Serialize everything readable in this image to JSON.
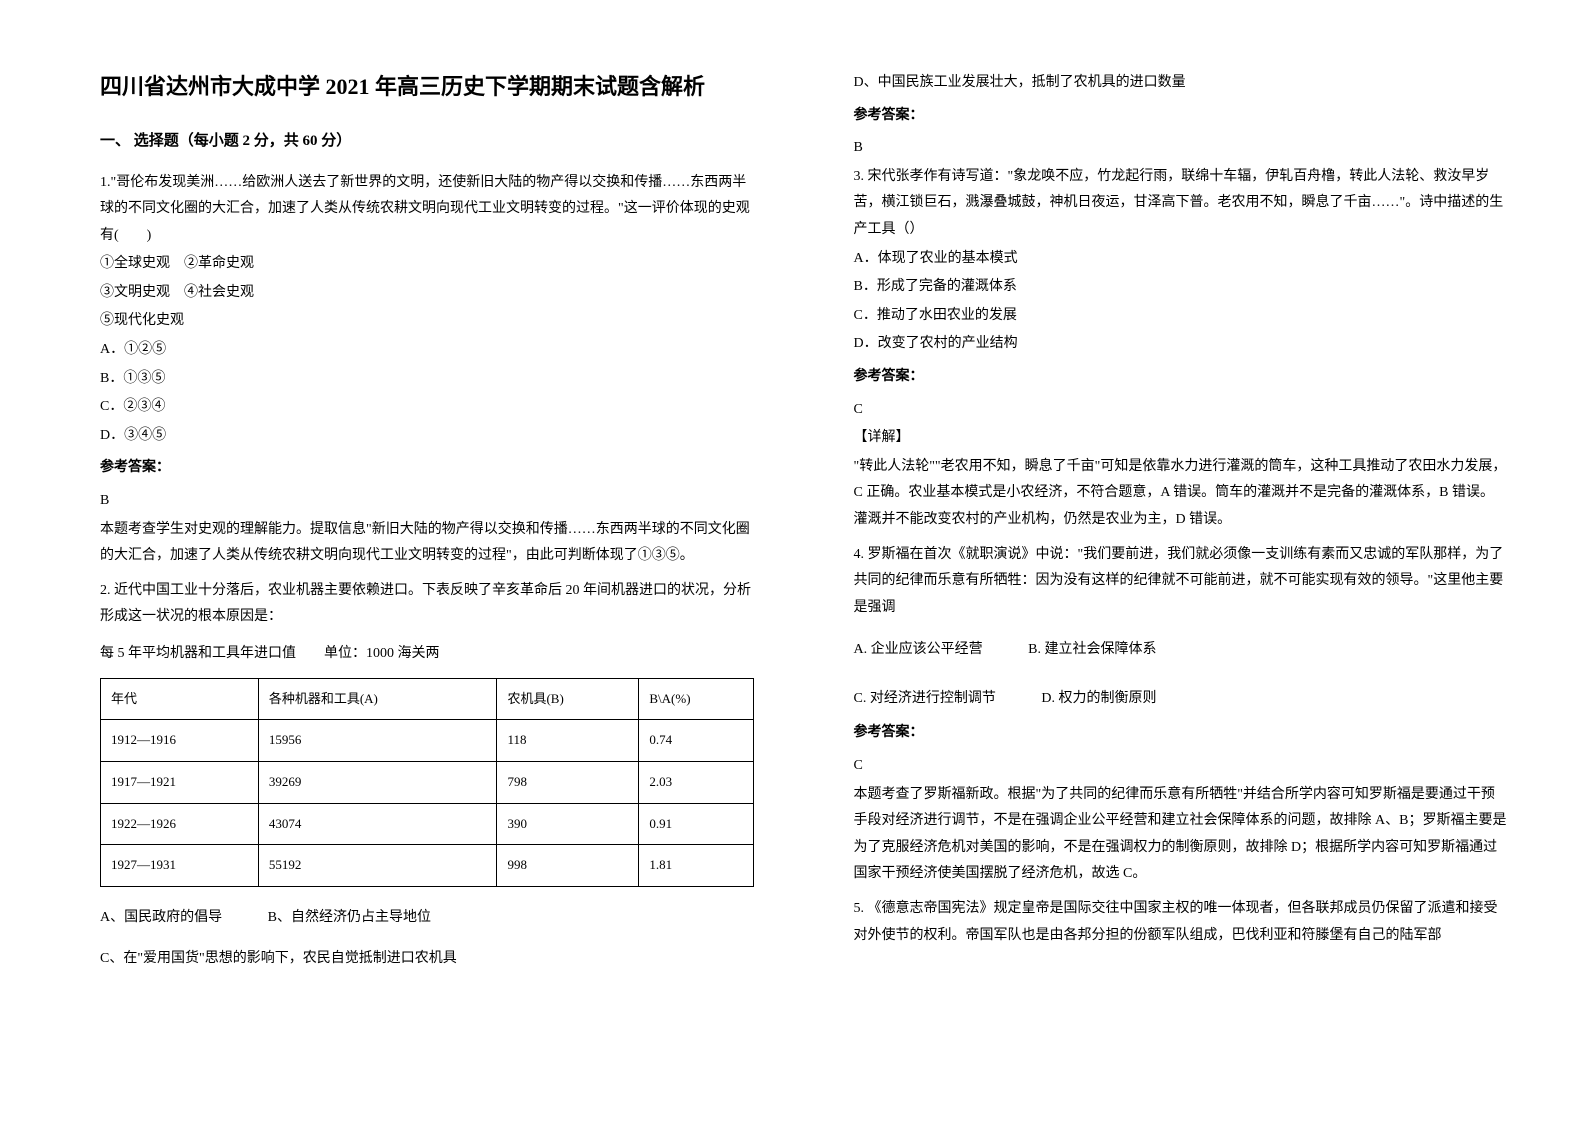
{
  "title": "四川省达州市大成中学 2021 年高三历史下学期期末试题含解析",
  "section1": "一、 选择题（每小题 2 分，共 60 分）",
  "q1": {
    "stem1": "1.\"哥伦布发现美洲……给欧洲人送去了新世界的文明，还使新旧大陆的物产得以交换和传播……东西两半球的不同文化圈的大汇合，加速了人类从传统农耕文明向现代工业文明转变的过程。\"这一评价体现的史观有(　　)",
    "line1": "①全球史观　②革命史观",
    "line2": "③文明史观　④社会史观",
    "line3": "⑤现代化史观",
    "optA": "A．①②⑤",
    "optB": "B．①③⑤",
    "optC": "C．②③④",
    "optD": "D．③④⑤",
    "ansLabel": "参考答案：",
    "ans": "B",
    "expl": "本题考查学生对史观的理解能力。提取信息\"新旧大陆的物产得以交换和传播……东西两半球的不同文化圈的大汇合，加速了人类从传统农耕文明向现代工业文明转变的过程\"，由此可判断体现了①③⑤。"
  },
  "q2": {
    "stem": "2. 近代中国工业十分落后，农业机器主要依赖进口。下表反映了辛亥革命后 20 年间机器进口的状况，分析形成这一状况的根本原因是：",
    "caption": "每 5 年平均机器和工具年进口值　　单位：1000 海关两",
    "headers": [
      "年代",
      "各种机器和工具(A)",
      "农机具(B)",
      "B\\A(%)"
    ],
    "rows": [
      [
        "1912—1916",
        "15956",
        "118",
        "0.74"
      ],
      [
        "1917—1921",
        "39269",
        "798",
        "2.03"
      ],
      [
        "1922—1926",
        "43074",
        "390",
        "0.91"
      ],
      [
        "1927—1931",
        "55192",
        "998",
        "1.81"
      ]
    ],
    "optA": "A、国民政府的倡导",
    "optB": "B、自然经济仍占主导地位",
    "optC": "C、在\"爱用国货\"思想的影响下，农民自觉抵制进口农机具",
    "optD": "D、中国民族工业发展壮大，抵制了农机具的进口数量",
    "ansLabel": "参考答案：",
    "ans": "B"
  },
  "q3": {
    "stem": "3. 宋代张孝作有诗写道：\"象龙唤不应，竹龙起行雨，联绵十车辐，伊轧百舟橹，转此人法轮、救汝早岁苦，横江锁巨石，溅瀑叠城鼓，神机日夜运，甘泽高下普。老农用不知，瞬息了千亩……\"。诗中描述的生产工具（）",
    "optA": "A．体现了农业的基本模式",
    "optB": "B．形成了完备的灌溉体系",
    "optC": "C．推动了水田农业的发展",
    "optD": "D．改变了农村的产业结构",
    "ansLabel": "参考答案：",
    "ans": "C",
    "detailLabel": "【详解】",
    "expl": "\"转此人法轮\"\"老农用不知，瞬息了千亩\"可知是依靠水力进行灌溉的筒车，这种工具推动了农田水力发展，C 正确。农业基本模式是小农经济，不符合题意，A 错误。筒车的灌溉并不是完备的灌溉体系，B 错误。灌溉并不能改变农村的产业机构，仍然是农业为主，D 错误。"
  },
  "q4": {
    "stem": "4. 罗斯福在首次《就职演说》中说：\"我们要前进，我们就必须像一支训练有素而又忠诚的军队那样，为了共同的纪律而乐意有所牺牲：因为没有这样的纪律就不可能前进，就不可能实现有效的领导。\"这里他主要是强调",
    "optA": "A. 企业应该公平经营",
    "optB": "B. 建立社会保障体系",
    "optC": "C. 对经济进行控制调节",
    "optD": "D. 权力的制衡原则",
    "ansLabel": "参考答案：",
    "ans": "C",
    "expl": "本题考查了罗斯福新政。根据\"为了共同的纪律而乐意有所牺牲\"并结合所学内容可知罗斯福是要通过干预手段对经济进行调节，不是在强调企业公平经营和建立社会保障体系的问题，故排除 A、B；罗斯福主要是为了克服经济危机对美国的影响，不是在强调权力的制衡原则，故排除 D；根据所学内容可知罗斯福通过国家干预经济使美国摆脱了经济危机，故选 C。"
  },
  "q5": {
    "stem": "5. 《德意志帝国宪法》规定皇帝是国际交往中国家主权的唯一体现者，但各联邦成员仍保留了派遣和接受对外使节的权利。帝国军队也是由各邦分担的份额军队组成，巴伐利亚和符滕堡有自己的陆军部"
  }
}
